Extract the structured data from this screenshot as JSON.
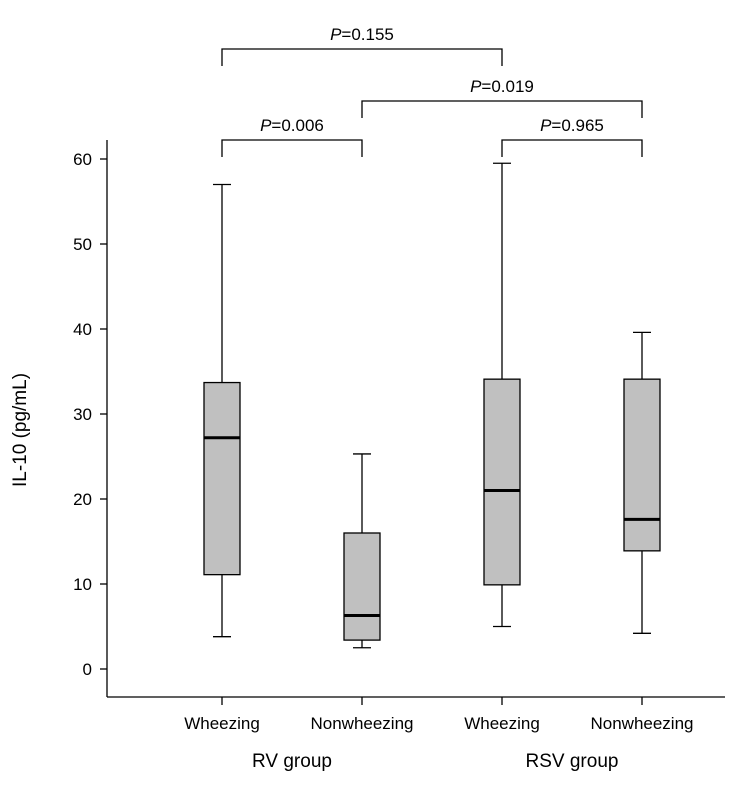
{
  "chart_data": {
    "type": "boxplot",
    "ylabel": "IL-10 (pg/mL)",
    "ylim": [
      -3,
      62
    ],
    "yticks": [
      0,
      10,
      20,
      30,
      40,
      50,
      60
    ],
    "boxes": [
      {
        "group": "RV group",
        "category": "Wheezing",
        "whisker_low": 3.8,
        "q1": 11.1,
        "median": 27.2,
        "q3": 33.7,
        "whisker_high": 57.0
      },
      {
        "group": "RV group",
        "category": "Nonwheezing",
        "whisker_low": 2.5,
        "q1": 3.4,
        "median": 6.3,
        "q3": 16.0,
        "whisker_high": 25.3
      },
      {
        "group": "RSV group",
        "category": "Wheezing",
        "whisker_low": 5.0,
        "q1": 9.9,
        "median": 21.0,
        "q3": 34.1,
        "whisker_high": 59.5
      },
      {
        "group": "RSV group",
        "category": "Nonwheezing",
        "whisker_low": 4.2,
        "q1": 13.9,
        "median": 17.6,
        "q3": 34.1,
        "whisker_high": 39.6
      }
    ],
    "groups": [
      {
        "label": "RV group",
        "boxes": [
          0,
          1
        ]
      },
      {
        "label": "RSV group",
        "boxes": [
          2,
          3
        ]
      }
    ],
    "comparisons": [
      {
        "from": 0,
        "to": 1,
        "level": 0,
        "p_prefix": "P",
        "p_value": "=0.006"
      },
      {
        "from": 2,
        "to": 3,
        "level": 0,
        "p_prefix": "P",
        "p_value": "=0.965"
      },
      {
        "from": 1,
        "to": 3,
        "level": 1,
        "p_prefix": "P",
        "p_value": "=0.019"
      },
      {
        "from": 0,
        "to": 2,
        "level": 2,
        "p_prefix": "P",
        "p_value": "=0.155"
      }
    ],
    "box_fill": "#c0c0c0",
    "line_color": "#000000"
  }
}
